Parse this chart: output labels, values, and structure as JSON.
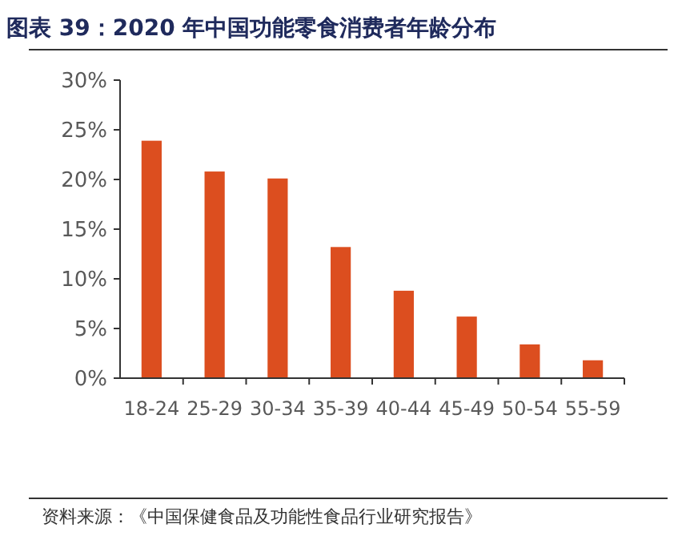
{
  "chart_data": {
    "type": "bar",
    "title": "图表 39：2020 年中国功能零食消费者年龄分布",
    "categories": [
      "18-24",
      "25-29",
      "30-34",
      "35-39",
      "40-44",
      "45-49",
      "50-54",
      "55-59"
    ],
    "values": [
      23.9,
      20.8,
      20.1,
      13.2,
      8.8,
      6.2,
      3.4,
      1.8
    ],
    "color": "#dc4e1f",
    "ylim": [
      0,
      30
    ],
    "yticks": [
      {
        "value": 0,
        "label": "0%"
      },
      {
        "value": 5,
        "label": "5%"
      },
      {
        "value": 10,
        "label": "10%"
      },
      {
        "value": 15,
        "label": "15%"
      },
      {
        "value": 20,
        "label": "20%"
      },
      {
        "value": 25,
        "label": "25%"
      },
      {
        "value": 30,
        "label": "30%"
      }
    ],
    "annotations": [
      "资料来源：《中国保健食品及功能性食品行业研究报告》"
    ]
  }
}
